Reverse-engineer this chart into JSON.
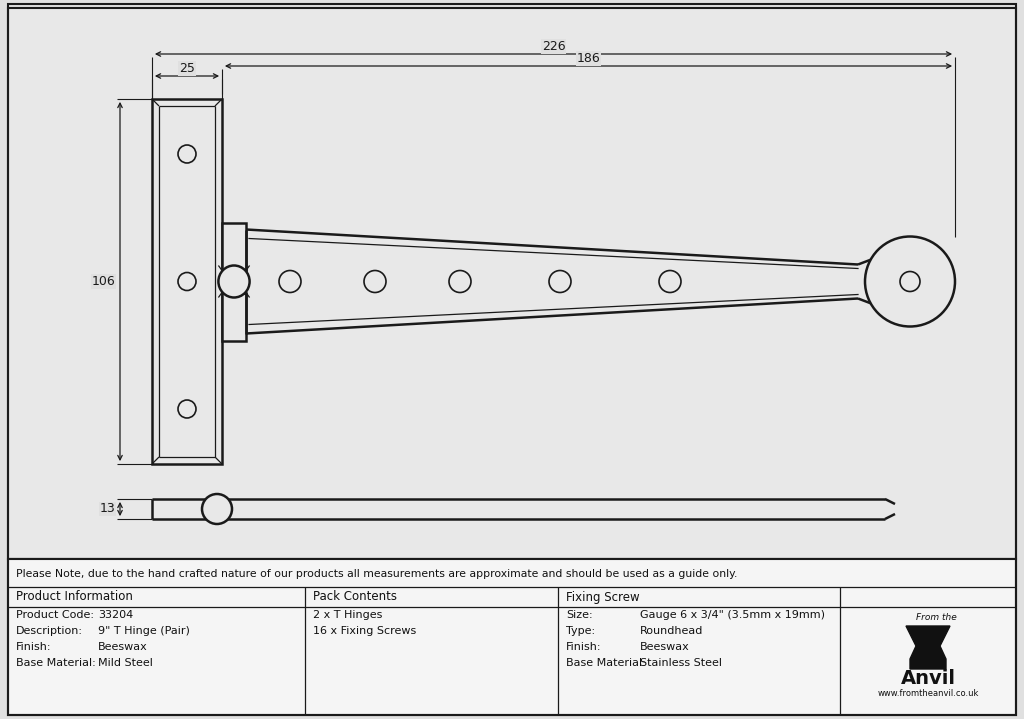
{
  "bg_color": "#e0e0e0",
  "drawing_bg": "#e8e8e8",
  "note_text": "Please Note, due to the hand crafted nature of our products all measurements are approximate and should be used as a guide only.",
  "product_info": {
    "header": "Product Information",
    "rows": [
      [
        "Product Code:",
        "33204"
      ],
      [
        "Description:",
        "9\" T Hinge (Pair)"
      ],
      [
        "Finish:",
        "Beeswax"
      ],
      [
        "Base Material:",
        "Mild Steel"
      ]
    ]
  },
  "pack_contents": {
    "header": "Pack Contents",
    "rows": [
      "2 x T Hinges",
      "16 x Fixing Screws"
    ]
  },
  "fixing_screw": {
    "header": "Fixing Screw",
    "rows": [
      [
        "Size:",
        "Gauge 6 x 3/4\" (3.5mm x 19mm)"
      ],
      [
        "Type:",
        "Roundhead"
      ],
      [
        "Finish:",
        "Beeswax"
      ],
      [
        "Base Material:",
        "Stainless Steel"
      ]
    ]
  },
  "dim_226": "226",
  "dim_25": "25",
  "dim_186": "186",
  "dim_106": "106",
  "dim_13": "13",
  "line_color": "#1a1a1a",
  "dim_color": "#1a1a1a"
}
